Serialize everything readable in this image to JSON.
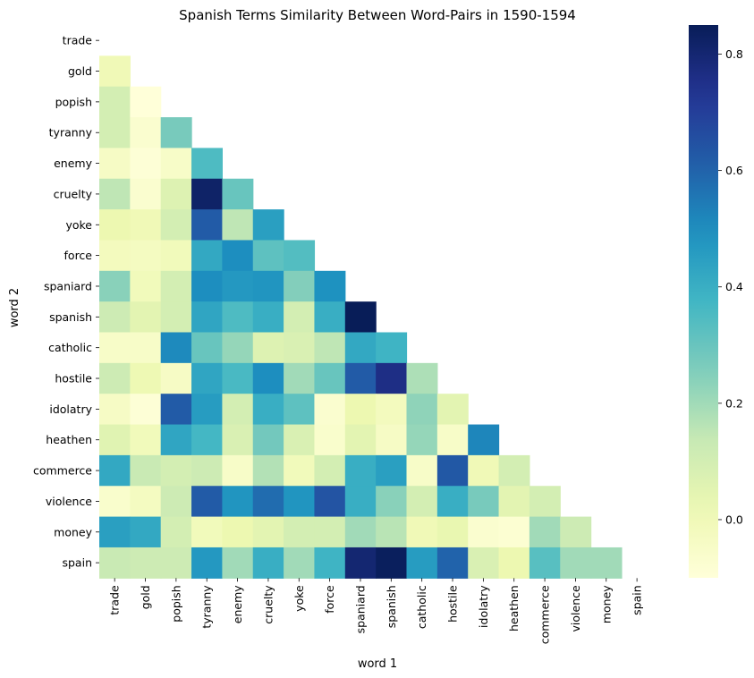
{
  "chart_data": {
    "type": "heatmap",
    "title": "Spanish Terms Similarity Between Word-Pairs in 1590-1594",
    "xlabel": "word 1",
    "ylabel": "word 2",
    "x_categories": [
      "trade",
      "gold",
      "popish",
      "tyranny",
      "enemy",
      "cruelty",
      "yoke",
      "force",
      "spaniard",
      "spanish",
      "catholic",
      "hostile",
      "idolatry",
      "heathen",
      "commerce",
      "violence",
      "money",
      "spain"
    ],
    "y_categories": [
      "trade",
      "gold",
      "popish",
      "tyranny",
      "enemy",
      "cruelty",
      "yoke",
      "force",
      "spaniard",
      "spanish",
      "catholic",
      "hostile",
      "idolatry",
      "heathen",
      "commerce",
      "violence",
      "money",
      "spain"
    ],
    "mask": "lower-triangle (diagonal and upper triangle empty)",
    "values": [
      [],
      [
        0.0
      ],
      [
        0.1,
        -0.1
      ],
      [
        0.1,
        -0.07,
        0.27
      ],
      [
        -0.04,
        -0.09,
        -0.05,
        0.35
      ],
      [
        0.15,
        -0.07,
        0.07,
        0.82,
        0.3
      ],
      [
        0.02,
        0.0,
        0.1,
        0.62,
        0.15,
        0.45
      ],
      [
        -0.02,
        -0.03,
        -0.01,
        0.42,
        0.5,
        0.32,
        0.34
      ],
      [
        0.24,
        -0.01,
        0.1,
        0.5,
        0.47,
        0.48,
        0.25,
        0.49
      ],
      [
        0.12,
        0.05,
        0.1,
        0.43,
        0.35,
        0.4,
        0.1,
        0.4,
        0.85
      ],
      [
        -0.05,
        -0.05,
        0.51,
        0.3,
        0.22,
        0.07,
        0.08,
        0.15,
        0.42,
        0.38
      ],
      [
        0.12,
        0.01,
        -0.04,
        0.43,
        0.36,
        0.5,
        0.2,
        0.3,
        0.62,
        0.76,
        0.18
      ],
      [
        -0.04,
        -0.09,
        0.62,
        0.46,
        0.1,
        0.4,
        0.32,
        -0.07,
        0.02,
        -0.02,
        0.23,
        0.05
      ],
      [
        0.06,
        -0.01,
        0.43,
        0.37,
        0.08,
        0.28,
        0.08,
        -0.06,
        0.05,
        -0.04,
        0.22,
        -0.05,
        0.52
      ],
      [
        0.42,
        0.13,
        0.1,
        0.12,
        -0.05,
        0.17,
        -0.01,
        0.1,
        0.4,
        0.45,
        -0.05,
        0.63,
        0.0,
        0.1
      ],
      [
        -0.06,
        -0.03,
        0.12,
        0.62,
        0.48,
        0.58,
        0.48,
        0.64,
        0.4,
        0.24,
        0.1,
        0.4,
        0.27,
        0.05,
        0.1
      ],
      [
        0.45,
        0.42,
        0.1,
        -0.01,
        0.02,
        0.05,
        0.1,
        0.1,
        0.2,
        0.16,
        0.0,
        0.03,
        -0.07,
        -0.08,
        0.2,
        0.12
      ],
      [
        0.13,
        0.12,
        0.12,
        0.47,
        0.2,
        0.4,
        0.2,
        0.38,
        0.8,
        0.84,
        0.46,
        0.6,
        0.08,
        0.02,
        0.33,
        0.2,
        0.2
      ]
    ],
    "colorbar": {
      "colormap": "YlGnBu",
      "vmin": -0.1,
      "vmax": 0.85,
      "ticks": [
        0.8,
        0.6,
        0.4,
        0.2,
        0.0
      ],
      "tick_labels": [
        "0.8",
        "0.6",
        "0.4",
        "0.2",
        "0.0"
      ]
    },
    "grid": false,
    "legend": "colorbar-right"
  }
}
